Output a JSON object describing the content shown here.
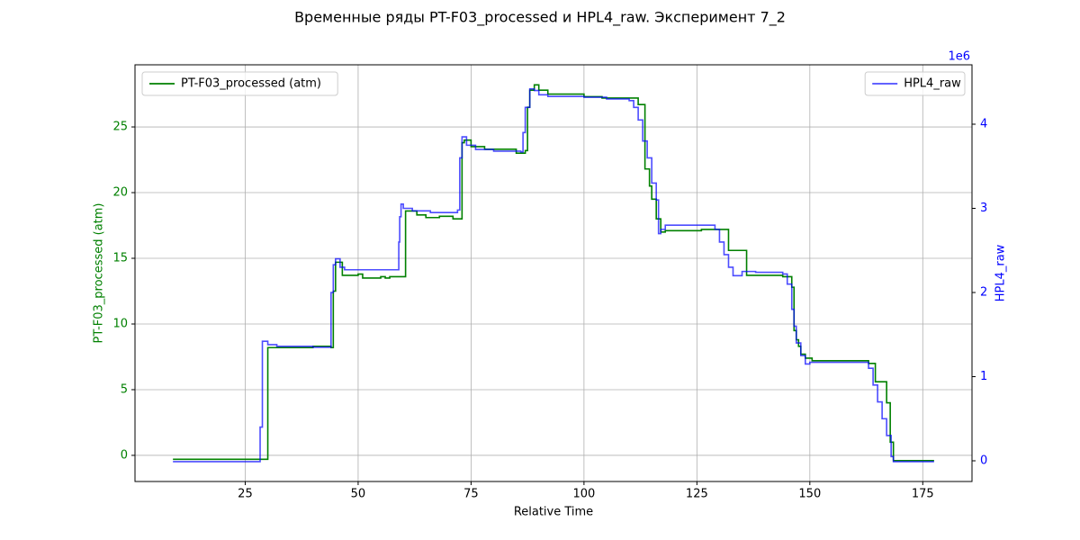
{
  "chart_data": {
    "type": "line",
    "drawstyle": "steps-post",
    "title": "Временные ряды PT-F03_processed и HPL4_raw. Эксперимент 7_2",
    "xlabel": "Relative Time",
    "ylabel": "PT-F03_processed (atm)",
    "y2label": "HPL4_raw",
    "y2_offset_text": "1e6",
    "xlim": [
      0.6,
      185.9
    ],
    "ylim": [
      -1.99,
      29.73
    ],
    "y2lim": [
      -0.246,
      4.706
    ],
    "xticks": [
      25,
      50,
      75,
      100,
      125,
      150,
      175
    ],
    "yticks": [
      0,
      5,
      10,
      15,
      20,
      25
    ],
    "y2ticks": [
      0,
      1,
      2,
      3,
      4
    ],
    "grid": true,
    "series": [
      {
        "name": "PT-F03_processed (atm)",
        "color": "#008000",
        "axis": "y",
        "legend_loc": "upper left",
        "x": [
          9,
          30,
          40,
          44,
          44.5,
          45,
          46.5,
          50,
          51,
          55,
          56,
          57,
          60.5,
          63,
          65,
          68,
          71,
          73,
          73.5,
          75,
          78,
          85,
          87,
          87.5,
          88,
          89,
          90,
          92,
          100,
          104,
          112,
          113.5,
          114.5,
          115,
          116,
          117,
          118,
          123,
          126,
          132,
          136,
          140,
          144,
          146,
          146.5,
          147,
          147.5,
          148,
          149,
          150.5,
          160,
          163,
          164.5,
          167,
          167.8,
          168.5,
          177.5
        ],
        "values": [
          -0.3,
          8.2,
          8.3,
          8.2,
          12.5,
          14.7,
          13.7,
          13.8,
          13.5,
          13.6,
          13.5,
          13.6,
          18.6,
          18.3,
          18.1,
          18.2,
          18.0,
          23.8,
          24.0,
          23.5,
          23.3,
          23.0,
          23.2,
          26.5,
          27.8,
          28.2,
          27.8,
          27.5,
          27.3,
          27.2,
          26.7,
          21.8,
          20.5,
          19.5,
          18.0,
          17.0,
          17.1,
          17.1,
          17.2,
          15.6,
          13.7,
          13.7,
          13.6,
          12.8,
          9.5,
          8.8,
          8.3,
          7.7,
          7.4,
          7.2,
          7.2,
          7.0,
          5.6,
          4.0,
          1.0,
          -0.4,
          -0.4
        ]
      },
      {
        "name": "HPL4_raw",
        "color": "#0000ff",
        "axis": "y2",
        "legend_loc": "upper right",
        "x": [
          9,
          28.3,
          28.8,
          30,
          32,
          40,
          44,
          44.5,
          45,
          46,
          47,
          59,
          59.2,
          59.5,
          60,
          62,
          66,
          72,
          72.5,
          73,
          74,
          76,
          80,
          86,
          86.5,
          87,
          88,
          89,
          90,
          92,
          100,
          105,
          110,
          111,
          112,
          113,
          114,
          115,
          116,
          116.5,
          117,
          118,
          120,
          128,
          129,
          130,
          131,
          132,
          133,
          135,
          138,
          144,
          145,
          146,
          146.5,
          147,
          148,
          149,
          150,
          158,
          162,
          163,
          164,
          165,
          166,
          167,
          168,
          168.5,
          177.5
        ],
        "values": [
          -0.01,
          0.4,
          1.42,
          1.38,
          1.36,
          1.35,
          2.0,
          2.33,
          2.4,
          2.3,
          2.27,
          2.6,
          2.9,
          3.05,
          3.0,
          2.97,
          2.95,
          2.98,
          3.6,
          3.85,
          3.75,
          3.7,
          3.68,
          3.67,
          3.9,
          4.2,
          4.42,
          4.4,
          4.35,
          4.33,
          4.32,
          4.3,
          4.28,
          4.2,
          4.05,
          3.8,
          3.6,
          3.3,
          3.1,
          2.7,
          2.75,
          2.8,
          2.8,
          2.8,
          2.75,
          2.6,
          2.45,
          2.3,
          2.2,
          2.25,
          2.24,
          2.22,
          2.1,
          1.8,
          1.6,
          1.4,
          1.25,
          1.15,
          1.17,
          1.17,
          1.17,
          1.1,
          0.9,
          0.7,
          0.5,
          0.3,
          0.05,
          -0.01,
          -0.01
        ]
      }
    ]
  }
}
